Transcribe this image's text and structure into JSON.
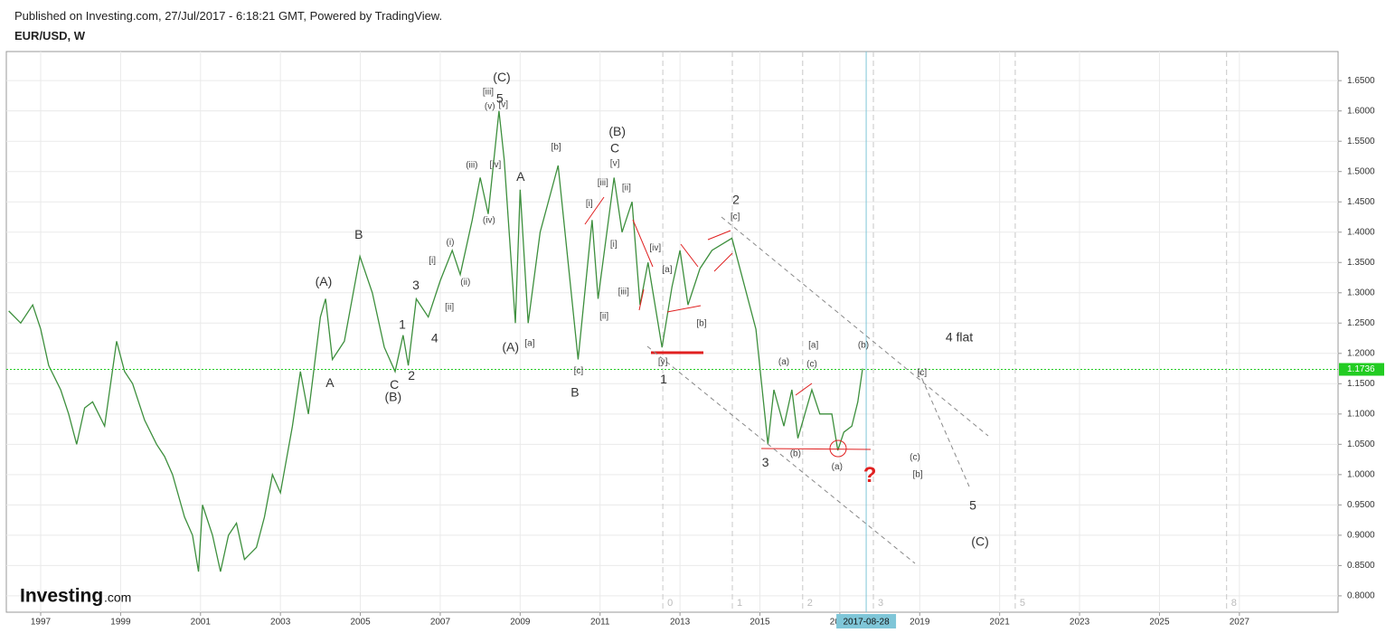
{
  "header": {
    "published": "Published on Investing.com, 27/Jul/2017 - 6:18:21 GMT, Powered by TradingView.",
    "symbol": "EUR/USD, W"
  },
  "logo": {
    "name": "Investing",
    "suffix": ".com"
  },
  "chart_data": {
    "type": "line",
    "title": "EUR/USD, W",
    "color": "#3d8f3d",
    "x": [
      1996.2,
      1996.5,
      1996.8,
      1997.0,
      1997.2,
      1997.5,
      1997.7,
      1997.9,
      1998.1,
      1998.3,
      1998.6,
      1998.9,
      1999.1,
      1999.3,
      1999.6,
      1999.9,
      2000.1,
      2000.3,
      2000.6,
      2000.8,
      2000.95,
      2001.05,
      2001.3,
      2001.5,
      2001.7,
      2001.9,
      2002.1,
      2002.4,
      2002.6,
      2002.8,
      2003.0,
      2003.3,
      2003.5,
      2003.7,
      2004.0,
      2004.13,
      2004.3,
      2004.6,
      2004.99,
      2005.3,
      2005.6,
      2005.87,
      2006.07,
      2006.2,
      2006.4,
      2006.7,
      2007.0,
      2007.3,
      2007.5,
      2007.8,
      2008.0,
      2008.2,
      2008.47,
      2008.6,
      2008.88,
      2009.0,
      2009.2,
      2009.5,
      2009.95,
      2010.2,
      2010.45,
      2010.8,
      2010.95,
      2011.35,
      2011.55,
      2011.8,
      2012.0,
      2012.2,
      2012.55,
      2012.8,
      2013.0,
      2013.2,
      2013.5,
      2013.8,
      2014.3,
      2014.5,
      2014.9,
      2015.2,
      2015.35,
      2015.6,
      2015.8,
      2015.95,
      2016.3,
      2016.5,
      2016.8,
      2016.95,
      2017.1,
      2017.3,
      2017.45,
      2017.57
    ],
    "values": [
      1.27,
      1.25,
      1.28,
      1.24,
      1.18,
      1.14,
      1.1,
      1.05,
      1.11,
      1.12,
      1.08,
      1.22,
      1.17,
      1.15,
      1.09,
      1.05,
      1.03,
      1.0,
      0.93,
      0.9,
      0.84,
      0.95,
      0.9,
      0.84,
      0.9,
      0.92,
      0.86,
      0.88,
      0.93,
      1.0,
      0.97,
      1.08,
      1.17,
      1.1,
      1.26,
      1.29,
      1.19,
      1.22,
      1.36,
      1.3,
      1.21,
      1.17,
      1.23,
      1.18,
      1.29,
      1.26,
      1.32,
      1.37,
      1.33,
      1.42,
      1.49,
      1.43,
      1.6,
      1.52,
      1.25,
      1.47,
      1.25,
      1.4,
      1.51,
      1.35,
      1.19,
      1.42,
      1.29,
      1.49,
      1.4,
      1.45,
      1.28,
      1.35,
      1.21,
      1.31,
      1.37,
      1.28,
      1.34,
      1.37,
      1.39,
      1.34,
      1.24,
      1.05,
      1.14,
      1.08,
      1.14,
      1.06,
      1.14,
      1.1,
      1.1,
      1.04,
      1.07,
      1.08,
      1.12,
      1.175
    ],
    "xlim": [
      1996.14,
      2029.47
    ],
    "ylim": [
      0.773,
      1.698
    ],
    "xticks": [
      1997,
      1999,
      2001,
      2003,
      2005,
      2007,
      2009,
      2011,
      2013,
      2015,
      2017,
      2019,
      2021,
      2023,
      2025,
      2027
    ],
    "yticks": [
      {
        "value": 0.8,
        "label": "0.8000"
      },
      {
        "value": 0.85,
        "label": "0.8500"
      },
      {
        "value": 0.9,
        "label": "0.9000"
      },
      {
        "value": 0.95,
        "label": "0.9500"
      },
      {
        "value": 1.0,
        "label": "1.0000"
      },
      {
        "value": 1.05,
        "label": "1.0500"
      },
      {
        "value": 1.1,
        "label": "1.1000"
      },
      {
        "value": 1.15,
        "label": "1.1500"
      },
      {
        "value": 1.2,
        "label": "1.2000"
      },
      {
        "value": 1.25,
        "label": "1.2500"
      },
      {
        "value": 1.3,
        "label": "1.3000"
      },
      {
        "value": 1.35,
        "label": "1.3500"
      },
      {
        "value": 1.4,
        "label": "1.4000"
      },
      {
        "value": 1.45,
        "label": "1.4500"
      },
      {
        "value": 1.5,
        "label": "1.5000"
      },
      {
        "value": 1.55,
        "label": "1.5500"
      },
      {
        "value": 1.6,
        "label": "1.6000"
      },
      {
        "value": 1.65,
        "label": "1.6500"
      }
    ],
    "grid": true,
    "last_price": {
      "value": 1.1736,
      "label": "1.1736",
      "color": "#22cc22"
    },
    "crosshair": {
      "value": 2017.66,
      "label": "2017-08-28",
      "color": "#7fc6d8"
    },
    "fib_time_zones": [
      {
        "value": 2012.57,
        "label": "0"
      },
      {
        "value": 2014.31,
        "label": "1"
      },
      {
        "value": 2016.07,
        "label": "2"
      },
      {
        "value": 2017.84,
        "label": "3"
      },
      {
        "value": 2021.39,
        "label": "5"
      },
      {
        "value": 2026.68,
        "label": "8"
      }
    ],
    "annotations": [
      {
        "text": "(A)",
        "x": 2004.08,
        "y": 1.317
      },
      {
        "text": "A",
        "x": 2004.24,
        "y": 1.15
      },
      {
        "text": "B",
        "x": 2004.96,
        "y": 1.395
      },
      {
        "text": "C",
        "x": 2005.85,
        "y": 1.147
      },
      {
        "text": "(B)",
        "x": 2005.82,
        "y": 1.127
      },
      {
        "text": "1",
        "x": 2006.05,
        "y": 1.246
      },
      {
        "text": "2",
        "x": 2006.28,
        "y": 1.162
      },
      {
        "text": "3",
        "x": 2006.39,
        "y": 1.311
      },
      {
        "text": "4",
        "x": 2006.86,
        "y": 1.224
      },
      {
        "text": "[i]",
        "x": 2006.8,
        "y": 1.353
      },
      {
        "text": "(i)",
        "x": 2007.25,
        "y": 1.383
      },
      {
        "text": "(ii)",
        "x": 2007.63,
        "y": 1.317
      },
      {
        "text": "[ii]",
        "x": 2007.23,
        "y": 1.276
      },
      {
        "text": "(iii)",
        "x": 2007.79,
        "y": 1.51
      },
      {
        "text": "(iv)",
        "x": 2008.22,
        "y": 1.419
      },
      {
        "text": "[iv]",
        "x": 2008.38,
        "y": 1.511
      },
      {
        "text": "[iii]",
        "x": 2008.2,
        "y": 1.631
      },
      {
        "text": "(v)",
        "x": 2008.24,
        "y": 1.607
      },
      {
        "text": "[v]",
        "x": 2008.58,
        "y": 1.61
      },
      {
        "text": "5",
        "x": 2008.49,
        "y": 1.619
      },
      {
        "text": "(C)",
        "x": 2008.54,
        "y": 1.654
      },
      {
        "text": "A",
        "x": 2009.01,
        "y": 1.49
      },
      {
        "text": "(A)",
        "x": 2008.76,
        "y": 1.209
      },
      {
        "text": "[a]",
        "x": 2009.24,
        "y": 1.216
      },
      {
        "text": "[b]",
        "x": 2009.9,
        "y": 1.54
      },
      {
        "text": "B",
        "x": 2010.37,
        "y": 1.134
      },
      {
        "text": "[c]",
        "x": 2010.46,
        "y": 1.171
      },
      {
        "text": "(B)",
        "x": 2011.43,
        "y": 1.565
      },
      {
        "text": "C",
        "x": 2011.37,
        "y": 1.537
      },
      {
        "text": "[v]",
        "x": 2011.37,
        "y": 1.513
      },
      {
        "text": "[iii]",
        "x": 2011.07,
        "y": 1.481
      },
      {
        "text": "[ii]",
        "x": 2011.66,
        "y": 1.473
      },
      {
        "text": "[i]",
        "x": 2010.73,
        "y": 1.447
      },
      {
        "text": "[i]",
        "x": 2011.34,
        "y": 1.38
      },
      {
        "text": "[iv]",
        "x": 2012.38,
        "y": 1.374
      },
      {
        "text": "[iii]",
        "x": 2011.59,
        "y": 1.301
      },
      {
        "text": "[ii]",
        "x": 2011.1,
        "y": 1.261
      },
      {
        "text": "[a]",
        "x": 2012.68,
        "y": 1.338
      },
      {
        "text": "[b]",
        "x": 2013.54,
        "y": 1.249
      },
      {
        "text": "[y]",
        "x": 2012.57,
        "y": 1.186
      },
      {
        "text": "1",
        "x": 2012.59,
        "y": 1.156
      },
      {
        "text": "2",
        "x": 2014.4,
        "y": 1.452
      },
      {
        "text": "[c]",
        "x": 2014.38,
        "y": 1.425
      },
      {
        "text": "3",
        "x": 2015.14,
        "y": 1.019
      },
      {
        "text": "(a)",
        "x": 2015.6,
        "y": 1.186
      },
      {
        "text": "(b)",
        "x": 2015.89,
        "y": 1.034
      },
      {
        "text": "(c)",
        "x": 2016.3,
        "y": 1.182
      },
      {
        "text": "[a]",
        "x": 2016.34,
        "y": 1.213
      },
      {
        "text": "(a)",
        "x": 2016.93,
        "y": 1.013
      },
      {
        "text": "(b)",
        "x": 2017.59,
        "y": 1.213
      },
      {
        "text": "4 flat",
        "x": 2019.99,
        "y": 1.225
      },
      {
        "text": "[c]",
        "x": 2019.06,
        "y": 1.168
      },
      {
        "text": "(c)",
        "x": 2018.88,
        "y": 1.028
      },
      {
        "text": "[b]",
        "x": 2018.95,
        "y": 1.0
      },
      {
        "text": "5",
        "x": 2020.33,
        "y": 0.948
      },
      {
        "text": "(C)",
        "x": 2020.51,
        "y": 0.888
      },
      {
        "text": "?",
        "x": 2017.75,
        "y": 0.997,
        "color": "#e02020"
      }
    ]
  }
}
